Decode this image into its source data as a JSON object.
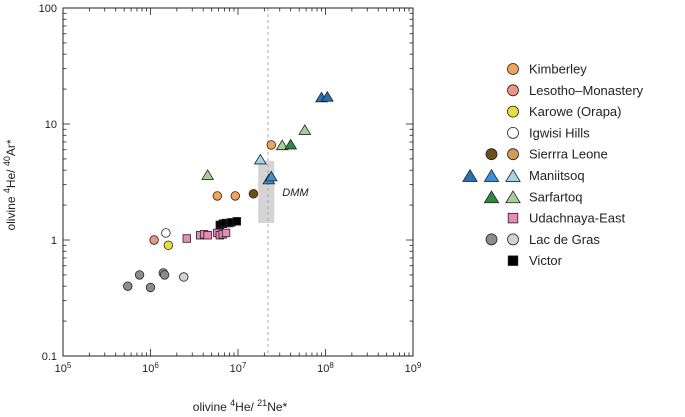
{
  "chart_data": {
    "type": "scatter",
    "x_scale": "log",
    "y_scale": "log",
    "xlim": [
      100000,
      1000000000
    ],
    "ylim": [
      0.1,
      100
    ],
    "x_ticks": [
      {
        "value": 100000,
        "base": "10",
        "exp": "5"
      },
      {
        "value": 1000000,
        "base": "10",
        "exp": "6"
      },
      {
        "value": 10000000,
        "base": "10",
        "exp": "7"
      },
      {
        "value": 100000000,
        "base": "10",
        "exp": "8"
      },
      {
        "value": 1000000000,
        "base": "10",
        "exp": "9"
      }
    ],
    "y_ticks": [
      {
        "value": 0.1,
        "label": "0.1"
      },
      {
        "value": 1,
        "label": "1"
      },
      {
        "value": 10,
        "label": "10"
      },
      {
        "value": 100,
        "label": "100"
      }
    ],
    "xlabel": {
      "pre": "olivine ",
      "sup1": "4",
      "mid": "He/ ",
      "sup2": "21",
      "post": "Ne*"
    },
    "ylabel": {
      "pre": "olivine ",
      "sup1": "4",
      "mid": "He/ ",
      "sup2": "40",
      "post": "Ar*"
    },
    "reference_line": {
      "x": 22000000,
      "style": "dashed",
      "color": "#aaaaaa"
    },
    "dmm_box": {
      "label": "DMM",
      "x_range": [
        17000000,
        26000000
      ],
      "y_range": [
        1.4,
        4.8
      ],
      "color": "#d4d4d4"
    },
    "legend": [
      {
        "label": "Kimberley",
        "markers": [
          {
            "shape": "circle",
            "color": "#f0a35a"
          }
        ]
      },
      {
        "label": "Lesotho–Monastery",
        "markers": [
          {
            "shape": "circle",
            "color": "#ee9585"
          }
        ]
      },
      {
        "label": "Karowe (Orapa)",
        "markers": [
          {
            "shape": "circle",
            "color": "#e6e03a"
          }
        ]
      },
      {
        "label": "Igwisi Hills",
        "markers": [
          {
            "shape": "circle",
            "color": "#ffffff"
          }
        ]
      },
      {
        "label": "Sierrra Leone",
        "markers": [
          {
            "shape": "circle",
            "color": "#6b4e1b"
          },
          {
            "shape": "circle",
            "color": "#d49a5c"
          }
        ]
      },
      {
        "label": "Maniitsoq",
        "markers": [
          {
            "shape": "triangle",
            "color": "#2d6fb0"
          },
          {
            "shape": "triangle",
            "color": "#3d8fd0"
          },
          {
            "shape": "triangle",
            "color": "#a2d4ec"
          }
        ]
      },
      {
        "label": "Sarfartoq",
        "markers": [
          {
            "shape": "triangle",
            "color": "#2e8a3e"
          },
          {
            "shape": "triangle",
            "color": "#a6cf98"
          }
        ]
      },
      {
        "label": "Udachnaya-East",
        "markers": [
          {
            "shape": "square",
            "color": "#ea8ab8"
          }
        ]
      },
      {
        "label": "Lac de Gras",
        "markers": [
          {
            "shape": "circle",
            "color": "#8c8c8c"
          },
          {
            "shape": "circle",
            "color": "#d2d2d2"
          }
        ]
      },
      {
        "label": "Victor",
        "markers": [
          {
            "shape": "square",
            "color": "#000000"
          }
        ]
      }
    ],
    "series": [
      {
        "name": "Lac de Gras (dark)",
        "shape": "circle",
        "color": "#8c8c8c",
        "points": [
          [
            550000,
            0.4
          ],
          [
            750000,
            0.5
          ],
          [
            1000000,
            0.39
          ],
          [
            1400000,
            0.52
          ],
          [
            1450000,
            0.5
          ]
        ]
      },
      {
        "name": "Lac de Gras (light)",
        "shape": "circle",
        "color": "#d2d2d2",
        "points": [
          [
            2400000,
            0.48
          ]
        ]
      },
      {
        "name": "Lesotho–Monastery",
        "shape": "circle",
        "color": "#ee9585",
        "points": [
          [
            1100000,
            1.0
          ]
        ]
      },
      {
        "name": "Igwisi Hills",
        "shape": "circle",
        "color": "#ffffff",
        "points": [
          [
            1500000,
            1.15
          ]
        ]
      },
      {
        "name": "Karowe (Orapa)",
        "shape": "circle",
        "color": "#e6e03a",
        "points": [
          [
            1600000,
            0.9
          ]
        ]
      },
      {
        "name": "Kimberley",
        "shape": "circle",
        "color": "#f0a35a",
        "points": [
          [
            5800000,
            2.4
          ],
          [
            9300000,
            2.4
          ],
          [
            24000000,
            6.6
          ]
        ]
      },
      {
        "name": "Sierrra Leone (dark)",
        "shape": "circle",
        "color": "#6b4e1b",
        "points": [
          [
            15000000,
            2.5
          ]
        ]
      },
      {
        "name": "Udachnaya-East",
        "shape": "square",
        "color": "#ea8ab8",
        "points": [
          [
            2600000,
            1.03
          ],
          [
            3700000,
            1.1
          ],
          [
            4100000,
            1.12
          ],
          [
            4500000,
            1.1
          ],
          [
            5800000,
            1.15
          ],
          [
            6200000,
            1.1
          ],
          [
            6700000,
            1.12
          ],
          [
            7300000,
            1.15
          ]
        ]
      },
      {
        "name": "Victor",
        "shape": "square",
        "color": "#000000",
        "points": [
          [
            6200000,
            1.35
          ],
          [
            6700000,
            1.38
          ],
          [
            7200000,
            1.4
          ],
          [
            7900000,
            1.4
          ],
          [
            8400000,
            1.42
          ],
          [
            9700000,
            1.45
          ]
        ]
      },
      {
        "name": "Sarfartoq (light)",
        "shape": "triangle",
        "color": "#a6cf98",
        "points": [
          [
            4500000,
            3.6
          ],
          [
            32000000,
            6.5
          ],
          [
            58000000,
            8.8
          ]
        ]
      },
      {
        "name": "Sarfartoq (dark)",
        "shape": "triangle",
        "color": "#2e8a3e",
        "points": [
          [
            40000000,
            6.6
          ]
        ]
      },
      {
        "name": "Maniitsoq (light)",
        "shape": "triangle",
        "color": "#a2d4ec",
        "points": [
          [
            18000000,
            4.9
          ]
        ]
      },
      {
        "name": "Maniitsoq (mid)",
        "shape": "triangle",
        "color": "#3d8fd0",
        "points": [
          [
            22500000,
            3.3
          ],
          [
            24000000,
            3.5
          ]
        ]
      },
      {
        "name": "Maniitsoq (dark)",
        "shape": "triangle",
        "color": "#2d6fb0",
        "points": [
          [
            90000000,
            16.8
          ],
          [
            105000000,
            17.0
          ]
        ]
      }
    ]
  }
}
